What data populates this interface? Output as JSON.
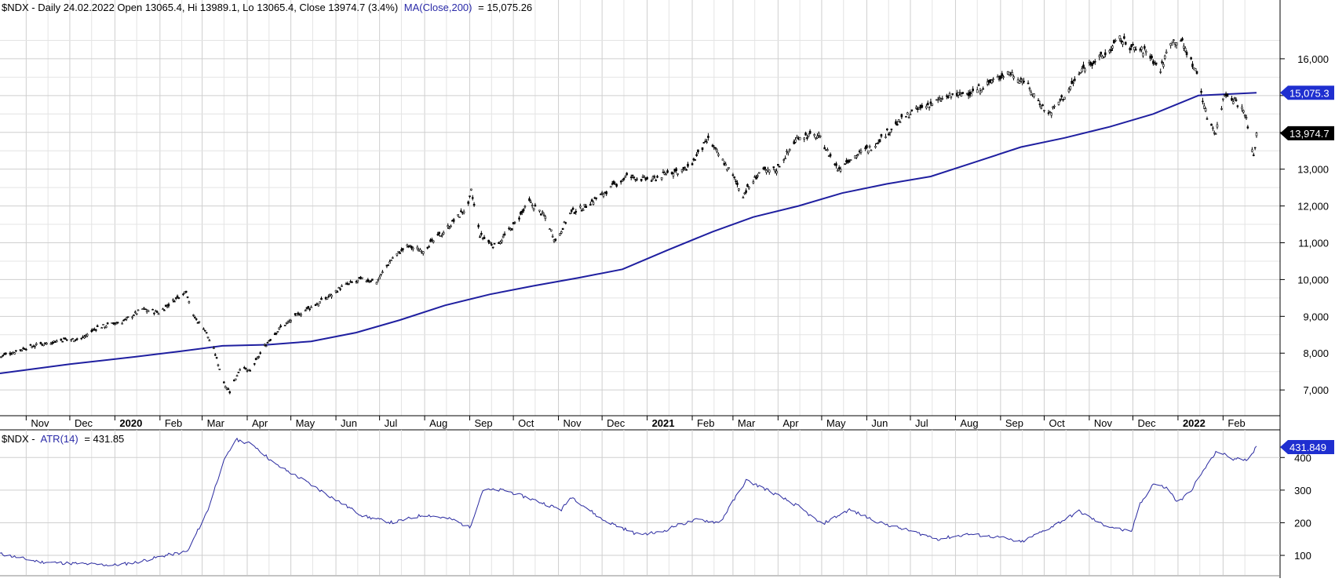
{
  "colors": {
    "price": "#000000",
    "ma": "#1f1fa0",
    "atr": "#2a2aa0",
    "grid": "#cfcfcf",
    "ma_tag": "#1f2fd0",
    "close_tag": "#000000"
  },
  "header": {
    "main_prefix": "$NDX - Daily 24.02.2022 Open 13065.4, Hi 13989.1, Lo 13065.4, Close 13974.7 (3.4%)",
    "main_ma": "MA(Close,200)",
    "main_ma_value": "= 15,075.26",
    "atr_prefix": "$NDX -",
    "atr_name": "ATR(14)",
    "atr_value": "= 431.85"
  },
  "tags": {
    "ma": "15,075.3",
    "close": "13,974.7",
    "atr": "431.849"
  },
  "chart_data": [
    {
      "type": "line",
      "title": "$NDX - Daily",
      "ylim": [
        6300,
        17000
      ],
      "y_ticks": [
        7000,
        8000,
        9000,
        10000,
        11000,
        12000,
        13000,
        14000,
        15000,
        16000
      ],
      "y_tick_labels": [
        "7,000",
        "8,000",
        "9,000",
        "10,000",
        "11,000",
        "12,000",
        "13,000",
        "",
        "",
        "16,000"
      ],
      "grid": true,
      "x_labels": [
        {
          "t": "Nov",
          "d": "2019-11-01",
          "bold": false
        },
        {
          "t": "Dec",
          "d": "2019-12-01",
          "bold": false
        },
        {
          "t": "2020",
          "d": "2020-01-01",
          "bold": true
        },
        {
          "t": "Feb",
          "d": "2020-02-01",
          "bold": false
        },
        {
          "t": "Mar",
          "d": "2020-03-01",
          "bold": false
        },
        {
          "t": "Apr",
          "d": "2020-04-01",
          "bold": false
        },
        {
          "t": "May",
          "d": "2020-05-01",
          "bold": false
        },
        {
          "t": "Jun",
          "d": "2020-06-01",
          "bold": false
        },
        {
          "t": "Jul",
          "d": "2020-07-01",
          "bold": false
        },
        {
          "t": "Aug",
          "d": "2020-08-01",
          "bold": false
        },
        {
          "t": "Sep",
          "d": "2020-09-01",
          "bold": false
        },
        {
          "t": "Oct",
          "d": "2020-10-01",
          "bold": false
        },
        {
          "t": "Nov",
          "d": "2020-11-01",
          "bold": false
        },
        {
          "t": "Dec",
          "d": "2020-12-01",
          "bold": false
        },
        {
          "t": "2021",
          "d": "2021-01-01",
          "bold": true
        },
        {
          "t": "Feb",
          "d": "2021-02-01",
          "bold": false
        },
        {
          "t": "Mar",
          "d": "2021-03-01",
          "bold": false
        },
        {
          "t": "Apr",
          "d": "2021-04-01",
          "bold": false
        },
        {
          "t": "May",
          "d": "2021-05-01",
          "bold": false
        },
        {
          "t": "Jun",
          "d": "2021-06-01",
          "bold": false
        },
        {
          "t": "Jul",
          "d": "2021-07-01",
          "bold": false
        },
        {
          "t": "Aug",
          "d": "2021-08-01",
          "bold": false
        },
        {
          "t": "Sep",
          "d": "2021-09-01",
          "bold": false
        },
        {
          "t": "Oct",
          "d": "2021-10-01",
          "bold": false
        },
        {
          "t": "Nov",
          "d": "2021-11-01",
          "bold": false
        },
        {
          "t": "Dec",
          "d": "2021-12-01",
          "bold": false
        },
        {
          "t": "2022",
          "d": "2022-01-01",
          "bold": true
        },
        {
          "t": "Feb",
          "d": "2022-02-01",
          "bold": false
        }
      ],
      "series": [
        {
          "name": "$NDX",
          "points": [
            [
              "2019-10-14",
              7900
            ],
            [
              "2019-10-28",
              8100
            ],
            [
              "2019-11-11",
              8250
            ],
            [
              "2019-11-25",
              8350
            ],
            [
              "2019-12-09",
              8400
            ],
            [
              "2019-12-20",
              8700
            ],
            [
              "2020-01-06",
              8850
            ],
            [
              "2020-01-20",
              9200
            ],
            [
              "2020-01-31",
              9100
            ],
            [
              "2020-02-19",
              9700
            ],
            [
              "2020-02-24",
              9000
            ],
            [
              "2020-03-02",
              8700
            ],
            [
              "2020-03-09",
              8100
            ],
            [
              "2020-03-16",
              7200
            ],
            [
              "2020-03-20",
              6950
            ],
            [
              "2020-03-27",
              7600
            ],
            [
              "2020-04-03",
              7500
            ],
            [
              "2020-04-13",
              8200
            ],
            [
              "2020-04-24",
              8700
            ],
            [
              "2020-05-08",
              9100
            ],
            [
              "2020-05-22",
              9400
            ],
            [
              "2020-06-05",
              9800
            ],
            [
              "2020-06-19",
              10000
            ],
            [
              "2020-06-29",
              9950
            ],
            [
              "2020-07-10",
              10600
            ],
            [
              "2020-07-20",
              10900
            ],
            [
              "2020-07-31",
              10800
            ],
            [
              "2020-08-14",
              11300
            ],
            [
              "2020-08-31",
              12000
            ],
            [
              "2020-09-02",
              12400
            ],
            [
              "2020-09-08",
              11200
            ],
            [
              "2020-09-18",
              10900
            ],
            [
              "2020-09-30",
              11400
            ],
            [
              "2020-10-12",
              12100
            ],
            [
              "2020-10-23",
              11700
            ],
            [
              "2020-10-30",
              11050
            ],
            [
              "2020-11-09",
              11800
            ],
            [
              "2020-11-20",
              12000
            ],
            [
              "2020-12-04",
              12400
            ],
            [
              "2020-12-18",
              12800
            ],
            [
              "2021-01-04",
              12700
            ],
            [
              "2021-01-15",
              12900
            ],
            [
              "2021-01-29",
              13000
            ],
            [
              "2021-02-12",
              13800
            ],
            [
              "2021-02-26",
              13000
            ],
            [
              "2021-03-08",
              12300
            ],
            [
              "2021-03-19",
              12900
            ],
            [
              "2021-03-31",
              13000
            ],
            [
              "2021-04-15",
              13900
            ],
            [
              "2021-04-29",
              13900
            ],
            [
              "2021-05-12",
              13000
            ],
            [
              "2021-05-21",
              13300
            ],
            [
              "2021-06-04",
              13600
            ],
            [
              "2021-06-18",
              14100
            ],
            [
              "2021-06-30",
              14500
            ],
            [
              "2021-07-16",
              14800
            ],
            [
              "2021-07-30",
              15000
            ],
            [
              "2021-08-13",
              15100
            ],
            [
              "2021-08-31",
              15500
            ],
            [
              "2021-09-07",
              15650
            ],
            [
              "2021-09-17",
              15400
            ],
            [
              "2021-09-30",
              14700
            ],
            [
              "2021-10-04",
              14500
            ],
            [
              "2021-10-15",
              15000
            ],
            [
              "2021-10-29",
              15800
            ],
            [
              "2021-11-12",
              16100
            ],
            [
              "2021-11-22",
              16550
            ],
            [
              "2021-11-30",
              16300
            ],
            [
              "2021-12-10",
              16200
            ],
            [
              "2021-12-20",
              15700
            ],
            [
              "2021-12-27",
              16500
            ],
            [
              "2022-01-03",
              16500
            ],
            [
              "2022-01-14",
              15600
            ],
            [
              "2022-01-21",
              14400
            ],
            [
              "2022-01-27",
              14000
            ],
            [
              "2022-02-02",
              15050
            ],
            [
              "2022-02-09",
              14900
            ],
            [
              "2022-02-16",
              14550
            ],
            [
              "2022-02-22",
              13300
            ],
            [
              "2022-02-24",
              13974.7
            ]
          ]
        },
        {
          "name": "MA(Close,200)",
          "points": [
            [
              "2019-10-14",
              7450
            ],
            [
              "2019-12-01",
              7700
            ],
            [
              "2020-01-15",
              7900
            ],
            [
              "2020-02-15",
              8050
            ],
            [
              "2020-03-15",
              8200
            ],
            [
              "2020-04-15",
              8230
            ],
            [
              "2020-05-15",
              8320
            ],
            [
              "2020-06-15",
              8560
            ],
            [
              "2020-07-15",
              8900
            ],
            [
              "2020-08-15",
              9300
            ],
            [
              "2020-09-15",
              9600
            ],
            [
              "2020-10-15",
              9830
            ],
            [
              "2020-11-15",
              10050
            ],
            [
              "2020-12-15",
              10280
            ],
            [
              "2021-01-15",
              10800
            ],
            [
              "2021-02-15",
              11300
            ],
            [
              "2021-03-15",
              11700
            ],
            [
              "2021-04-15",
              12000
            ],
            [
              "2021-05-15",
              12350
            ],
            [
              "2021-06-15",
              12600
            ],
            [
              "2021-07-15",
              12800
            ],
            [
              "2021-08-15",
              13200
            ],
            [
              "2021-09-15",
              13600
            ],
            [
              "2021-10-15",
              13850
            ],
            [
              "2021-11-15",
              14150
            ],
            [
              "2021-12-15",
              14500
            ],
            [
              "2022-01-15",
              15000
            ],
            [
              "2022-02-24",
              15075.26
            ]
          ]
        }
      ]
    },
    {
      "type": "line",
      "title": "$NDX - ATR(14)",
      "ylim": [
        40,
        480
      ],
      "y_ticks": [
        100,
        200,
        300,
        400
      ],
      "y_tick_labels": [
        "100",
        "200",
        "300",
        "400"
      ],
      "grid": true,
      "series": [
        {
          "name": "ATR(14)",
          "points": [
            [
              "2019-10-14",
              105
            ],
            [
              "2019-11-10",
              80
            ],
            [
              "2019-12-05",
              75
            ],
            [
              "2019-12-31",
              70
            ],
            [
              "2020-01-15",
              78
            ],
            [
              "2020-02-05",
              100
            ],
            [
              "2020-02-20",
              112
            ],
            [
              "2020-03-05",
              240
            ],
            [
              "2020-03-15",
              380
            ],
            [
              "2020-03-24",
              455
            ],
            [
              "2020-04-05",
              440
            ],
            [
              "2020-04-20",
              380
            ],
            [
              "2020-05-10",
              330
            ],
            [
              "2020-06-01",
              270
            ],
            [
              "2020-06-20",
              220
            ],
            [
              "2020-07-10",
              200
            ],
            [
              "2020-08-01",
              225
            ],
            [
              "2020-08-20",
              210
            ],
            [
              "2020-09-01",
              185
            ],
            [
              "2020-09-10",
              300
            ],
            [
              "2020-09-25",
              300
            ],
            [
              "2020-10-15",
              270
            ],
            [
              "2020-11-03",
              240
            ],
            [
              "2020-11-10",
              280
            ],
            [
              "2020-12-01",
              210
            ],
            [
              "2020-12-25",
              165
            ],
            [
              "2021-01-10",
              170
            ],
            [
              "2021-01-20",
              190
            ],
            [
              "2021-02-05",
              210
            ],
            [
              "2021-02-20",
              200
            ],
            [
              "2021-03-10",
              330
            ],
            [
              "2021-03-25",
              300
            ],
            [
              "2021-04-15",
              250
            ],
            [
              "2021-05-01",
              195
            ],
            [
              "2021-05-20",
              240
            ],
            [
              "2021-06-10",
              200
            ],
            [
              "2021-07-01",
              175
            ],
            [
              "2021-07-20",
              150
            ],
            [
              "2021-08-10",
              165
            ],
            [
              "2021-09-01",
              155
            ],
            [
              "2021-09-15",
              140
            ],
            [
              "2021-10-05",
              185
            ],
            [
              "2021-10-25",
              235
            ],
            [
              "2021-11-10",
              195
            ],
            [
              "2021-11-30",
              170
            ],
            [
              "2021-12-05",
              250
            ],
            [
              "2021-12-15",
              320
            ],
            [
              "2021-12-25",
              305
            ],
            [
              "2022-01-01",
              260
            ],
            [
              "2022-01-10",
              300
            ],
            [
              "2022-01-20",
              370
            ],
            [
              "2022-01-28",
              420
            ],
            [
              "2022-02-08",
              395
            ],
            [
              "2022-02-18",
              395
            ],
            [
              "2022-02-24",
              431.85
            ]
          ]
        }
      ]
    }
  ]
}
